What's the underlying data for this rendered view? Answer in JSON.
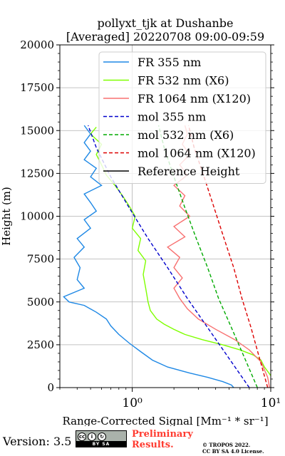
{
  "chart_data": {
    "type": "line",
    "title": [
      "pollyxt_tjk at Dushanbe",
      "[Averaged] 20220708 09:00-09:59"
    ],
    "xlabel": "Range-Corrected Signal [Mm⁻¹ * sr⁻¹]",
    "ylabel": "Height (m)",
    "xscale": "log",
    "xlim": [
      0.3,
      10
    ],
    "ylim": [
      0,
      20000
    ],
    "yticks": [
      0,
      2500,
      5000,
      7500,
      10000,
      12500,
      15000,
      17500,
      20000
    ],
    "ytick_labels": [
      "0",
      "2500",
      "5000",
      "7500",
      "10000",
      "12500",
      "15000",
      "17500",
      "20000"
    ],
    "xticks": [
      1,
      10
    ],
    "xtick_labels": [
      "10⁰",
      "10¹"
    ],
    "grid": true,
    "legend_position": "upper-right",
    "series": [
      {
        "name": "FR 355 nm",
        "color": "#1e88e5",
        "style": "solid",
        "points": [
          [
            5.4,
            0
          ],
          [
            5.2,
            150
          ],
          [
            4.5,
            350
          ],
          [
            3.5,
            600
          ],
          [
            2.6,
            850
          ],
          [
            1.8,
            1200
          ],
          [
            1.4,
            1600
          ],
          [
            1.15,
            2100
          ],
          [
            0.95,
            2600
          ],
          [
            0.8,
            3100
          ],
          [
            0.7,
            3600
          ],
          [
            0.65,
            4000
          ],
          [
            0.55,
            4400
          ],
          [
            0.45,
            4800
          ],
          [
            0.35,
            5000
          ],
          [
            0.32,
            5300
          ],
          [
            0.45,
            5800
          ],
          [
            0.4,
            6300
          ],
          [
            0.42,
            7000
          ],
          [
            0.38,
            7600
          ],
          [
            0.45,
            8200
          ],
          [
            0.4,
            8700
          ],
          [
            0.5,
            9300
          ],
          [
            0.45,
            9800
          ],
          [
            0.55,
            10300
          ],
          [
            0.5,
            10800
          ],
          [
            0.45,
            11300
          ],
          [
            0.6,
            11800
          ],
          [
            0.5,
            12300
          ],
          [
            0.55,
            12800
          ],
          [
            0.45,
            13300
          ],
          [
            0.5,
            13800
          ],
          [
            0.45,
            14300
          ],
          [
            0.5,
            14800
          ],
          [
            0.45,
            15300
          ]
        ]
      },
      {
        "name": "FR 532 nm (X6)",
        "color": "#7fff00",
        "style": "solid",
        "points": [
          [
            10,
            700
          ],
          [
            9.6,
            900
          ],
          [
            9.0,
            1200
          ],
          [
            8.5,
            1600
          ],
          [
            7.5,
            1900
          ],
          [
            6.0,
            2200
          ],
          [
            4.5,
            2500
          ],
          [
            3.2,
            2800
          ],
          [
            2.4,
            3100
          ],
          [
            2.0,
            3400
          ],
          [
            1.7,
            3700
          ],
          [
            1.5,
            4000
          ],
          [
            1.35,
            4500
          ],
          [
            1.3,
            5000
          ],
          [
            1.25,
            5800
          ],
          [
            1.2,
            6600
          ],
          [
            1.25,
            7400
          ],
          [
            1.1,
            8000
          ],
          [
            1.15,
            8700
          ],
          [
            1.0,
            9300
          ],
          [
            1.05,
            10000
          ],
          [
            0.95,
            10600
          ],
          [
            0.85,
            11200
          ],
          [
            0.75,
            11800
          ],
          [
            0.65,
            12400
          ],
          [
            0.6,
            13000
          ],
          [
            0.55,
            13600
          ],
          [
            0.6,
            14200
          ],
          [
            0.5,
            14800
          ],
          [
            0.55,
            15200
          ]
        ]
      },
      {
        "name": "FR 1064 nm (X120)",
        "color": "#f87070",
        "style": "solid",
        "points": [
          [
            9.8,
            0
          ],
          [
            9.5,
            600
          ],
          [
            8.5,
            1500
          ],
          [
            7.0,
            2200
          ],
          [
            5.5,
            2800
          ],
          [
            4.0,
            3400
          ],
          [
            3.0,
            4000
          ],
          [
            2.5,
            4600
          ],
          [
            2.2,
            5200
          ],
          [
            2.0,
            5800
          ],
          [
            2.3,
            6400
          ],
          [
            2.0,
            7000
          ],
          [
            2.2,
            7600
          ],
          [
            1.8,
            8200
          ],
          [
            2.4,
            8800
          ],
          [
            2.0,
            9400
          ],
          [
            2.6,
            10000
          ],
          [
            2.2,
            10600
          ],
          [
            2.4,
            11200
          ],
          [
            2.0,
            11800
          ],
          [
            2.5,
            12400
          ],
          [
            2.2,
            13000
          ],
          [
            2.6,
            13600
          ],
          [
            2.3,
            14200
          ],
          [
            2.5,
            14800
          ],
          [
            2.4,
            15300
          ]
        ]
      },
      {
        "name": "mol 355 nm",
        "color": "#0000cd",
        "style": "dashed",
        "points": [
          [
            7.0,
            0
          ],
          [
            5.0,
            1700
          ],
          [
            3.5,
            3500
          ],
          [
            2.5,
            5200
          ],
          [
            1.8,
            7000
          ],
          [
            1.3,
            8700
          ],
          [
            0.95,
            10500
          ],
          [
            0.7,
            12300
          ],
          [
            0.55,
            14000
          ],
          [
            0.48,
            15300
          ]
        ]
      },
      {
        "name": "mol 532 nm (X6)",
        "color": "#00aa00",
        "style": "dashed",
        "points": [
          [
            8.0,
            0
          ],
          [
            6.5,
            1700
          ],
          [
            5.2,
            3500
          ],
          [
            4.2,
            5200
          ],
          [
            3.5,
            7000
          ],
          [
            2.9,
            8700
          ],
          [
            2.4,
            10500
          ],
          [
            2.0,
            12300
          ],
          [
            1.7,
            14000
          ],
          [
            1.55,
            15300
          ]
        ]
      },
      {
        "name": "mol 1064 nm (X120)",
        "color": "#dd0000",
        "style": "dashed",
        "points": [
          [
            9.5,
            0
          ],
          [
            8.3,
            1700
          ],
          [
            7.2,
            3500
          ],
          [
            6.2,
            5200
          ],
          [
            5.4,
            7000
          ],
          [
            4.6,
            8700
          ],
          [
            3.9,
            10500
          ],
          [
            3.3,
            12300
          ],
          [
            2.8,
            14000
          ],
          [
            2.55,
            15300
          ]
        ]
      },
      {
        "name": "Reference Height",
        "color": "#000000",
        "style": "solid",
        "points": []
      }
    ]
  },
  "footer": {
    "version": "Version: 3.5",
    "cc_by_sa": "BY SA",
    "preliminary": "Preliminary\nResults.",
    "copyright": "© TROPOS 2022.\nCC BY SA 4.0 License."
  }
}
